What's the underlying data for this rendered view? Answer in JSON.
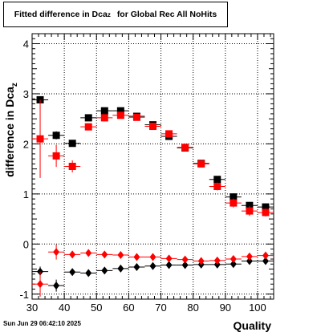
{
  "chart_data": {
    "type": "scatter",
    "title": "Fitted difference in Dca_z for Global Rec All NoHits",
    "title_parts": {
      "prefix": "Fitted difference in Dca",
      "sub": "z",
      "suffix": "for Global Rec All NoHits"
    },
    "xlabel": "Quality",
    "ylabel": "difference in Dca_z",
    "ylabel_parts": {
      "main": "difference in Dca",
      "sub": "z"
    },
    "xlim": [
      30,
      105
    ],
    "ylim": [
      -1.1,
      4.2
    ],
    "xticks": [
      30,
      40,
      50,
      60,
      70,
      80,
      90,
      100
    ],
    "yticks": [
      -1,
      0,
      1,
      2,
      3,
      4
    ],
    "grid": true,
    "legend": "none",
    "series": [
      {
        "marker": "square",
        "color": "#000000",
        "x": [
          32.5,
          37.5,
          42.5,
          47.5,
          52.5,
          57.5,
          62.5,
          67.5,
          72.5,
          77.5,
          82.5,
          87.5,
          92.5,
          97.5,
          102.5
        ],
        "y": [
          2.88,
          2.17,
          2.01,
          2.52,
          2.66,
          2.66,
          2.55,
          2.38,
          2.15,
          1.92,
          1.61,
          1.29,
          0.94,
          0.77,
          0.74
        ],
        "err": [
          0.0,
          0.08,
          0.05,
          0.04,
          0.04,
          0.04,
          0.04,
          0.04,
          0.04,
          0.04,
          0.04,
          0.05,
          0.05,
          0.05,
          0.05
        ]
      },
      {
        "marker": "square",
        "color": "#ff0000",
        "x": [
          32.5,
          37.5,
          42.5,
          47.5,
          52.5,
          57.5,
          62.5,
          67.5,
          72.5,
          77.5,
          82.5,
          87.5,
          92.5,
          97.5,
          102.5
        ],
        "y": [
          2.1,
          1.76,
          1.55,
          2.34,
          2.52,
          2.57,
          2.53,
          2.35,
          2.2,
          1.93,
          1.6,
          1.15,
          0.82,
          0.66,
          0.63
        ],
        "err": [
          0.78,
          0.22,
          0.12,
          0.07,
          0.06,
          0.05,
          0.05,
          0.06,
          0.07,
          0.07,
          0.06,
          0.08,
          0.09,
          0.1,
          0.08
        ]
      },
      {
        "marker": "diamond",
        "color": "#000000",
        "x": [
          32.5,
          37.5,
          42.5,
          47.5,
          52.5,
          57.5,
          62.5,
          67.5,
          72.5,
          77.5,
          82.5,
          87.5,
          92.5,
          97.5,
          102.5
        ],
        "y": [
          -0.55,
          -0.83,
          -0.56,
          -0.58,
          -0.53,
          -0.49,
          -0.46,
          -0.44,
          -0.42,
          -0.42,
          -0.41,
          -0.41,
          -0.4,
          -0.34,
          -0.34
        ],
        "err": [
          0.1,
          0.12,
          0.04,
          0.04,
          0.03,
          0.03,
          0.03,
          0.03,
          0.03,
          0.03,
          0.03,
          0.03,
          0.03,
          0.03,
          0.03
        ]
      },
      {
        "marker": "diamond",
        "color": "#ff0000",
        "x": [
          32.5,
          37.5,
          42.5,
          47.5,
          52.5,
          57.5,
          62.5,
          67.5,
          72.5,
          77.5,
          82.5,
          87.5,
          92.5,
          97.5,
          102.5
        ],
        "y": [
          -0.8,
          -0.16,
          -0.21,
          -0.18,
          -0.21,
          -0.22,
          -0.26,
          -0.26,
          -0.29,
          -0.31,
          -0.34,
          -0.33,
          -0.3,
          -0.25,
          -0.23
        ],
        "err": [
          0.25,
          0.15,
          0.07,
          0.05,
          0.05,
          0.05,
          0.05,
          0.05,
          0.05,
          0.05,
          0.05,
          0.05,
          0.05,
          0.06,
          0.06
        ]
      }
    ]
  },
  "footer": {
    "date": "Sun Jun 29 06:42:10 2025"
  }
}
